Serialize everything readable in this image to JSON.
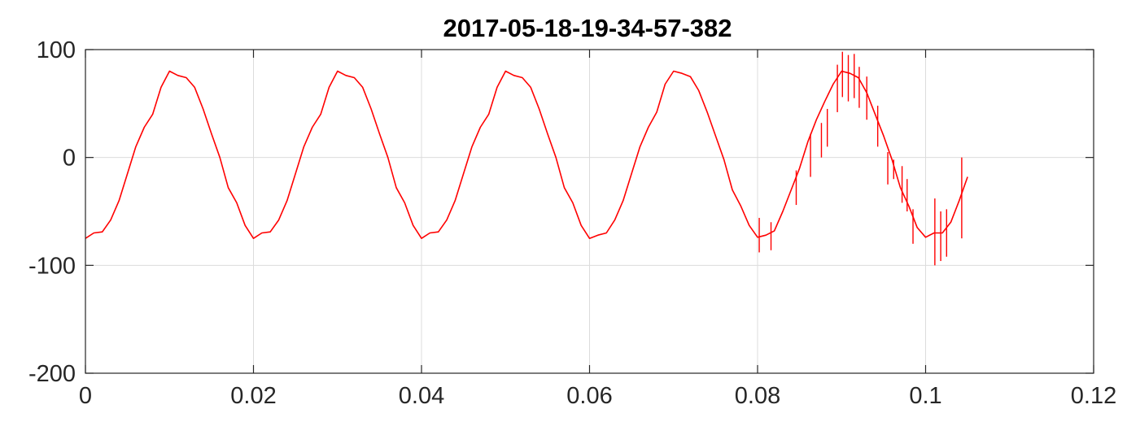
{
  "chart_data": {
    "type": "line",
    "title": "2017-05-18-19-34-57-382",
    "xlabel": "",
    "ylabel": "",
    "xlim": [
      0,
      0.12
    ],
    "ylim": [
      -200,
      100
    ],
    "xticks": [
      0,
      0.02,
      0.04,
      0.06,
      0.08,
      0.1,
      0.12
    ],
    "xtick_labels": [
      "0",
      "0.02",
      "0.04",
      "0.06",
      "0.08",
      "0.1",
      "0.12"
    ],
    "yticks": [
      -200,
      -100,
      0,
      100
    ],
    "ytick_labels": [
      "-200",
      "-100",
      "0",
      "100"
    ],
    "grid": true,
    "series": [
      {
        "color": "#ff0000",
        "x": [
          0.0,
          0.001,
          0.002,
          0.003,
          0.004,
          0.005,
          0.006,
          0.007,
          0.008,
          0.009,
          0.01,
          0.011,
          0.012,
          0.013,
          0.014,
          0.015,
          0.016,
          0.017,
          0.018,
          0.019,
          0.02,
          0.021,
          0.022,
          0.023,
          0.024,
          0.025,
          0.026,
          0.027,
          0.028,
          0.029,
          0.03,
          0.031,
          0.032,
          0.033,
          0.034,
          0.035,
          0.036,
          0.037,
          0.038,
          0.039,
          0.04,
          0.041,
          0.042,
          0.043,
          0.044,
          0.045,
          0.046,
          0.047,
          0.048,
          0.049,
          0.05,
          0.051,
          0.052,
          0.053,
          0.054,
          0.055,
          0.056,
          0.057,
          0.058,
          0.059,
          0.06,
          0.061,
          0.062,
          0.063,
          0.064,
          0.065,
          0.066,
          0.067,
          0.068,
          0.069,
          0.07,
          0.071,
          0.072,
          0.073,
          0.074,
          0.075,
          0.076,
          0.077,
          0.078,
          0.079,
          0.08,
          0.081,
          0.082,
          0.083,
          0.084,
          0.085,
          0.086,
          0.087,
          0.088,
          0.089,
          0.09,
          0.091,
          0.092,
          0.093,
          0.094,
          0.095,
          0.096,
          0.097,
          0.098,
          0.099,
          0.1,
          0.101,
          0.102,
          0.103,
          0.104,
          0.105
        ],
        "y": [
          -75,
          -70,
          -69,
          -58,
          -40,
          -15,
          10,
          28,
          40,
          65,
          80,
          76,
          74,
          65,
          45,
          22,
          0,
          -28,
          -42,
          -63,
          -75,
          -70,
          -69,
          -58,
          -40,
          -15,
          10,
          28,
          40,
          65,
          80,
          76,
          74,
          65,
          45,
          22,
          0,
          -28,
          -42,
          -63,
          -75,
          -70,
          -69,
          -58,
          -40,
          -15,
          10,
          28,
          40,
          65,
          80,
          76,
          74,
          65,
          45,
          22,
          0,
          -28,
          -42,
          -63,
          -75,
          -72,
          -70,
          -58,
          -40,
          -15,
          10,
          28,
          42,
          68,
          80,
          78,
          75,
          62,
          42,
          20,
          -2,
          -30,
          -45,
          -63,
          -74,
          -72,
          -68,
          -50,
          -30,
          -10,
          15,
          35,
          52,
          68,
          80,
          78,
          74,
          60,
          40,
          20,
          -2,
          -28,
          -45,
          -65,
          -74,
          -70,
          -70,
          -60,
          -40,
          -18
        ]
      }
    ],
    "noise_bars": [
      {
        "x": 0.0802,
        "y": [
          -88,
          -56
        ]
      },
      {
        "x": 0.0816,
        "y": [
          -86,
          -60
        ]
      },
      {
        "x": 0.0846,
        "y": [
          -44,
          -12
        ]
      },
      {
        "x": 0.0863,
        "y": [
          -18,
          22
        ]
      },
      {
        "x": 0.0876,
        "y": [
          0,
          32
        ]
      },
      {
        "x": 0.0883,
        "y": [
          10,
          45
        ]
      },
      {
        "x": 0.0895,
        "y": [
          42,
          86
        ]
      },
      {
        "x": 0.0901,
        "y": [
          56,
          98
        ]
      },
      {
        "x": 0.0908,
        "y": [
          52,
          95
        ]
      },
      {
        "x": 0.0915,
        "y": [
          55,
          96
        ]
      },
      {
        "x": 0.0921,
        "y": [
          46,
          84
        ]
      },
      {
        "x": 0.093,
        "y": [
          35,
          75
        ]
      },
      {
        "x": 0.0943,
        "y": [
          10,
          48
        ]
      },
      {
        "x": 0.0955,
        "y": [
          -25,
          5
        ]
      },
      {
        "x": 0.0962,
        "y": [
          -20,
          -2
        ]
      },
      {
        "x": 0.0972,
        "y": [
          -42,
          -8
        ]
      },
      {
        "x": 0.0978,
        "y": [
          -50,
          -20
        ]
      },
      {
        "x": 0.0985,
        "y": [
          -80,
          -48
        ]
      },
      {
        "x": 0.1011,
        "y": [
          -100,
          -38
        ]
      },
      {
        "x": 0.1018,
        "y": [
          -96,
          -50
        ]
      },
      {
        "x": 0.1025,
        "y": [
          -92,
          -48
        ]
      },
      {
        "x": 0.1043,
        "y": [
          -75,
          0
        ]
      }
    ]
  }
}
